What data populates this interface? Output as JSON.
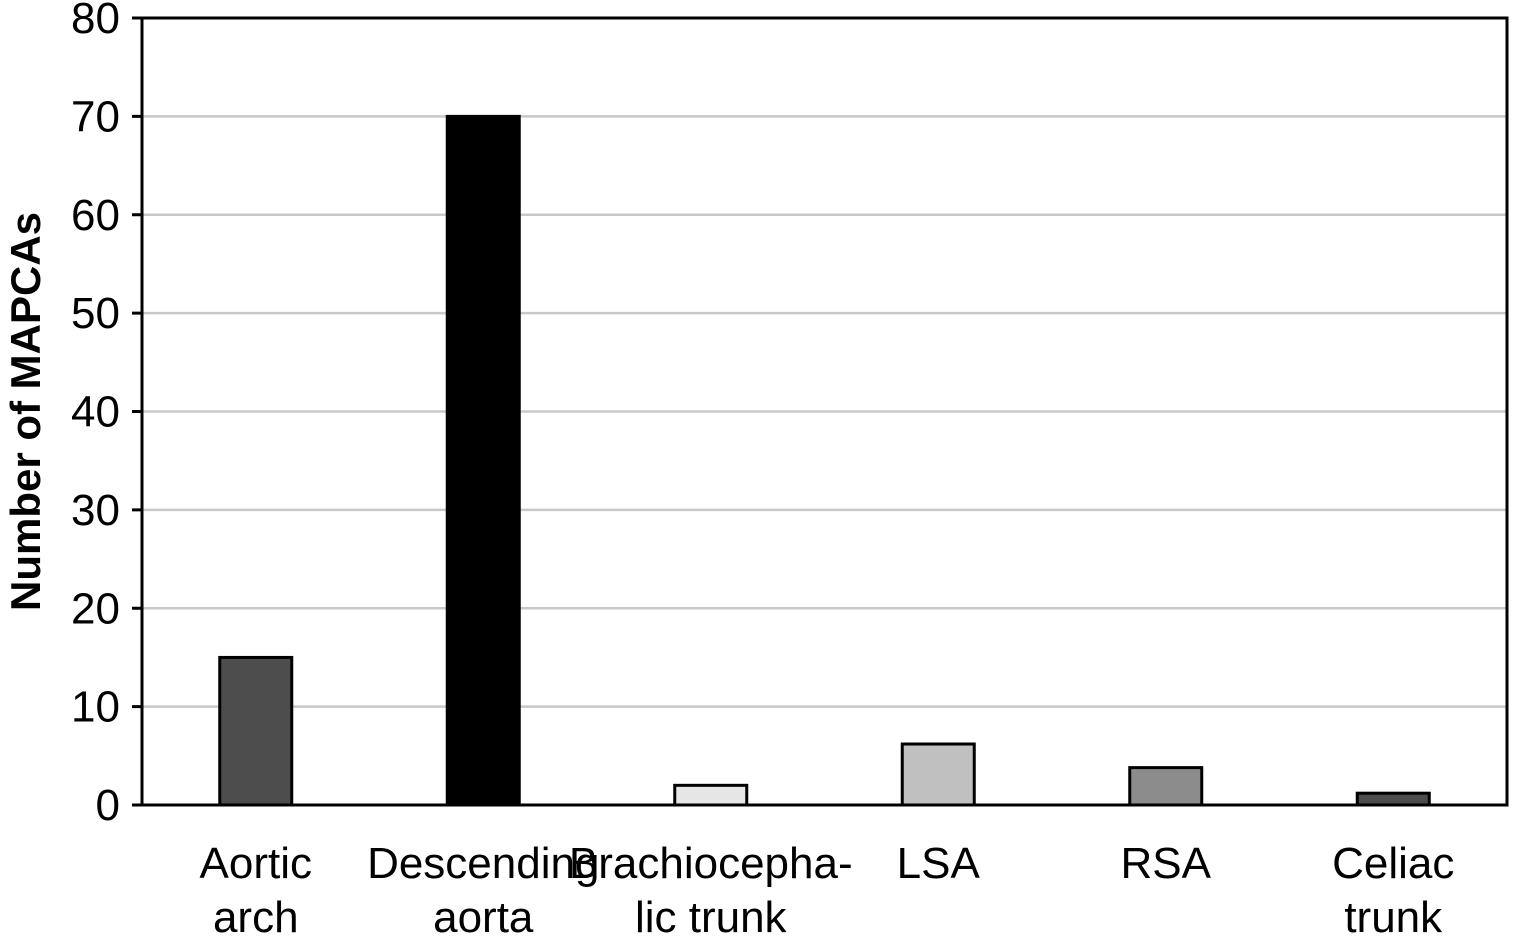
{
  "chart_data": {
    "type": "bar",
    "categories": [
      [
        "Aortic",
        "arch"
      ],
      [
        "Descending",
        "aorta"
      ],
      [
        "Brachiocepha-",
        "lic trunk"
      ],
      [
        "LSA"
      ],
      [
        "RSA"
      ],
      [
        "Celiac",
        "trunk"
      ]
    ],
    "values": [
      15,
      70,
      2,
      6.2,
      3.8,
      1.2
    ],
    "bar_colors": [
      "#4d4d4d",
      "#000000",
      "#e6e6e6",
      "#c0c0c0",
      "#8c8c8c",
      "#4d4d4d"
    ],
    "ylabel": "Number of MAPCAs",
    "ylim": [
      0,
      80
    ],
    "yticks": [
      0,
      10,
      20,
      30,
      40,
      50,
      60,
      70,
      80
    ],
    "grid": true,
    "grid_color": "#c8c8c8",
    "legend": "none"
  }
}
